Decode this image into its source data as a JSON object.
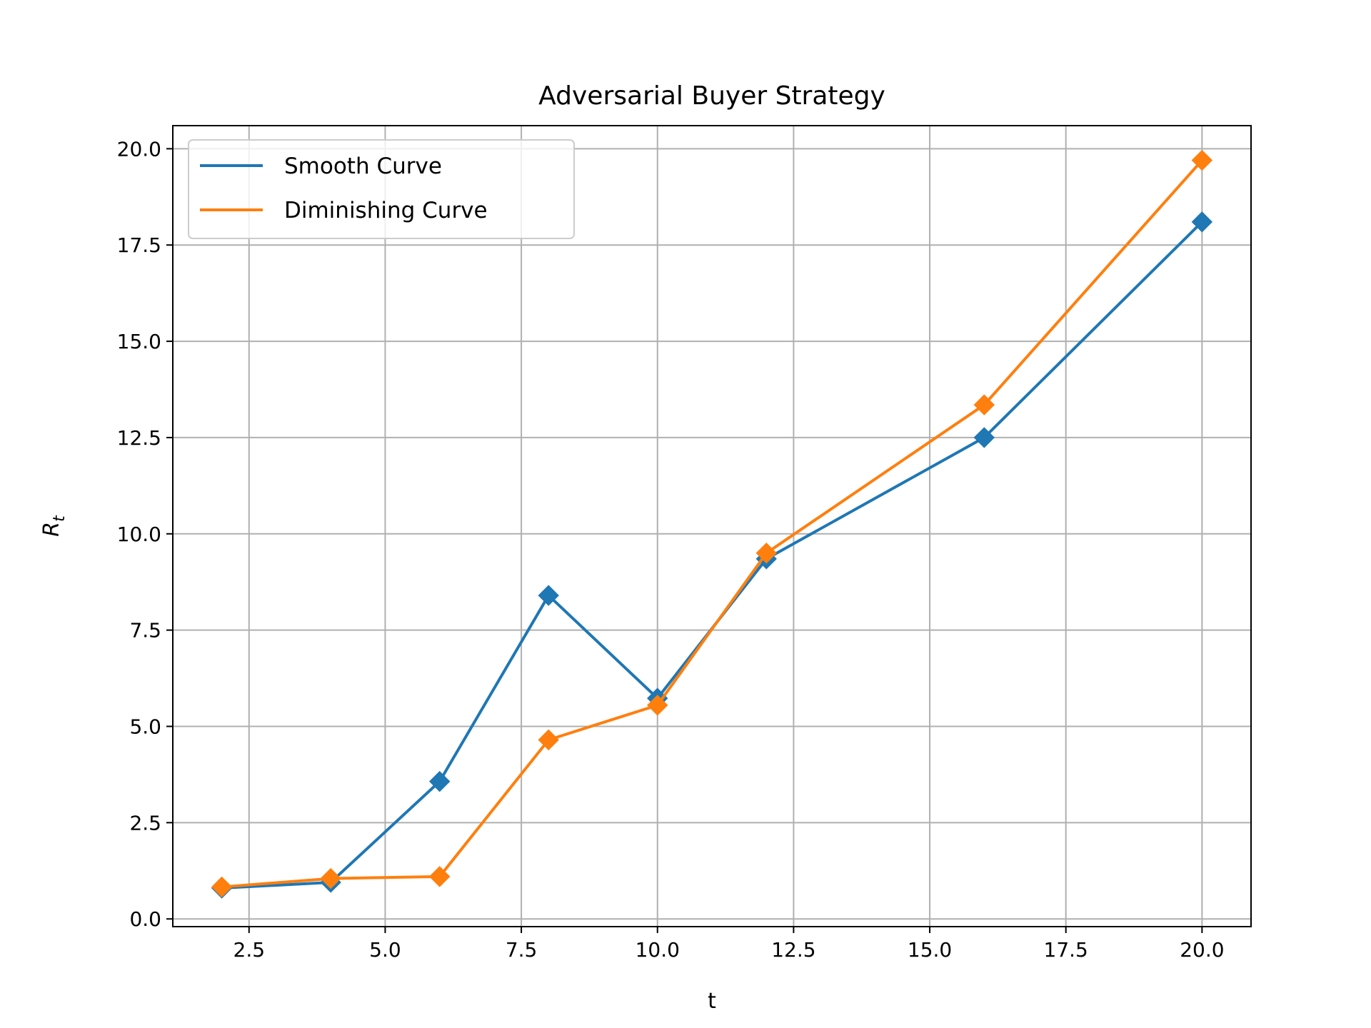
{
  "chart_data": {
    "type": "line",
    "title": "Adversarial Buyer Strategy",
    "xlabel": "t",
    "ylabel": "R",
    "ylabel_subscript": "t",
    "xlim": [
      1.1,
      20.9
    ],
    "ylim": [
      -0.2,
      20.6
    ],
    "xticks": [
      2.5,
      5.0,
      7.5,
      10.0,
      12.5,
      15.0,
      17.5,
      20.0
    ],
    "xtick_labels": [
      "2.5",
      "5.0",
      "7.5",
      "10.0",
      "12.5",
      "15.0",
      "17.5",
      "20.0"
    ],
    "yticks": [
      0.0,
      2.5,
      5.0,
      7.5,
      10.0,
      12.5,
      15.0,
      17.5,
      20.0
    ],
    "ytick_labels": [
      "0.0",
      "2.5",
      "5.0",
      "7.5",
      "10.0",
      "12.5",
      "15.0",
      "17.5",
      "20.0"
    ],
    "grid": true,
    "legend_position": "top-left",
    "marker": "diamond",
    "series": [
      {
        "name": "Smooth Curve",
        "color": "#1f77b4",
        "x": [
          2,
          4,
          6,
          8,
          10,
          12,
          16,
          20
        ],
        "y": [
          0.8,
          0.95,
          3.57,
          8.4,
          5.73,
          9.35,
          12.5,
          18.1
        ]
      },
      {
        "name": "Diminishing Curve",
        "color": "#ff7f0e",
        "x": [
          2,
          4,
          6,
          8,
          10,
          12,
          16,
          20
        ],
        "y": [
          0.83,
          1.05,
          1.1,
          4.65,
          5.55,
          9.5,
          13.35,
          19.7
        ]
      }
    ]
  }
}
